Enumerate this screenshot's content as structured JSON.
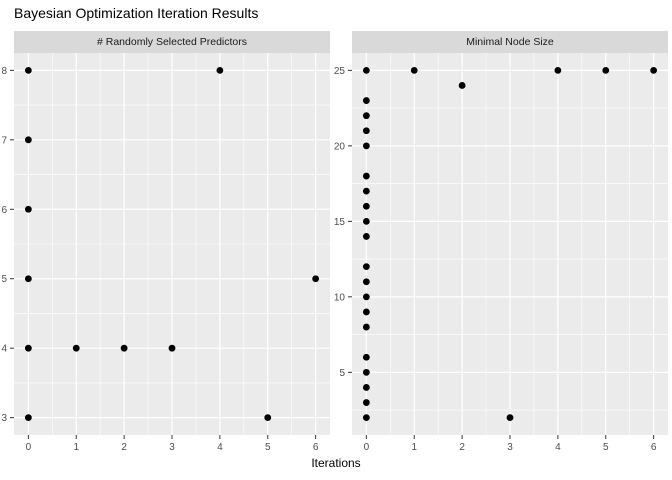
{
  "title": "Bayesian Optimization Iteration Results",
  "x_axis_title": "Iterations",
  "colors": {
    "background": "#FFFFFF",
    "panel_background": "#EBEBEB",
    "strip_background": "#D9D9D9",
    "gridline_major": "#FFFFFF",
    "gridline_minor": "#FFFFFF",
    "point": "#000000",
    "axis_text": "#4D4D4D",
    "tick_mark": "#333333",
    "title_text": "#000000",
    "strip_text": "#1A1A1A"
  },
  "chart_data": [
    {
      "type": "scatter",
      "facet_label": "# Randomly Selected Predictors",
      "xlabel": "Iterations",
      "ylabel": "",
      "xlim": [
        -0.3,
        6.3
      ],
      "ylim": [
        2.75,
        8.25
      ],
      "x_ticks": [
        0,
        1,
        2,
        3,
        4,
        5,
        6
      ],
      "y_ticks": [
        3,
        4,
        5,
        6,
        7,
        8
      ],
      "grid": true,
      "legend": "none",
      "points": [
        [
          0,
          3
        ],
        [
          0,
          4
        ],
        [
          0,
          5
        ],
        [
          0,
          6
        ],
        [
          0,
          7
        ],
        [
          0,
          8
        ],
        [
          1,
          4
        ],
        [
          2,
          4
        ],
        [
          3,
          4
        ],
        [
          4,
          8
        ],
        [
          5,
          3
        ],
        [
          6,
          5
        ]
      ]
    },
    {
      "type": "scatter",
      "facet_label": "Minimal Node Size",
      "xlabel": "Iterations",
      "ylabel": "",
      "xlim": [
        -0.3,
        6.3
      ],
      "ylim": [
        0.85,
        26.15
      ],
      "x_ticks": [
        0,
        1,
        2,
        3,
        4,
        5,
        6
      ],
      "y_ticks": [
        5,
        10,
        15,
        20,
        25
      ],
      "grid": true,
      "legend": "none",
      "points": [
        [
          0,
          2
        ],
        [
          0,
          3
        ],
        [
          0,
          4
        ],
        [
          0,
          5
        ],
        [
          0,
          6
        ],
        [
          0,
          8
        ],
        [
          0,
          9
        ],
        [
          0,
          10
        ],
        [
          0,
          11
        ],
        [
          0,
          12
        ],
        [
          0,
          14
        ],
        [
          0,
          15
        ],
        [
          0,
          16
        ],
        [
          0,
          17
        ],
        [
          0,
          18
        ],
        [
          0,
          20
        ],
        [
          0,
          21
        ],
        [
          0,
          22
        ],
        [
          0,
          23
        ],
        [
          0,
          25
        ],
        [
          1,
          25
        ],
        [
          2,
          24
        ],
        [
          3,
          2
        ],
        [
          4,
          25
        ],
        [
          5,
          25
        ],
        [
          6,
          25
        ]
      ]
    }
  ]
}
